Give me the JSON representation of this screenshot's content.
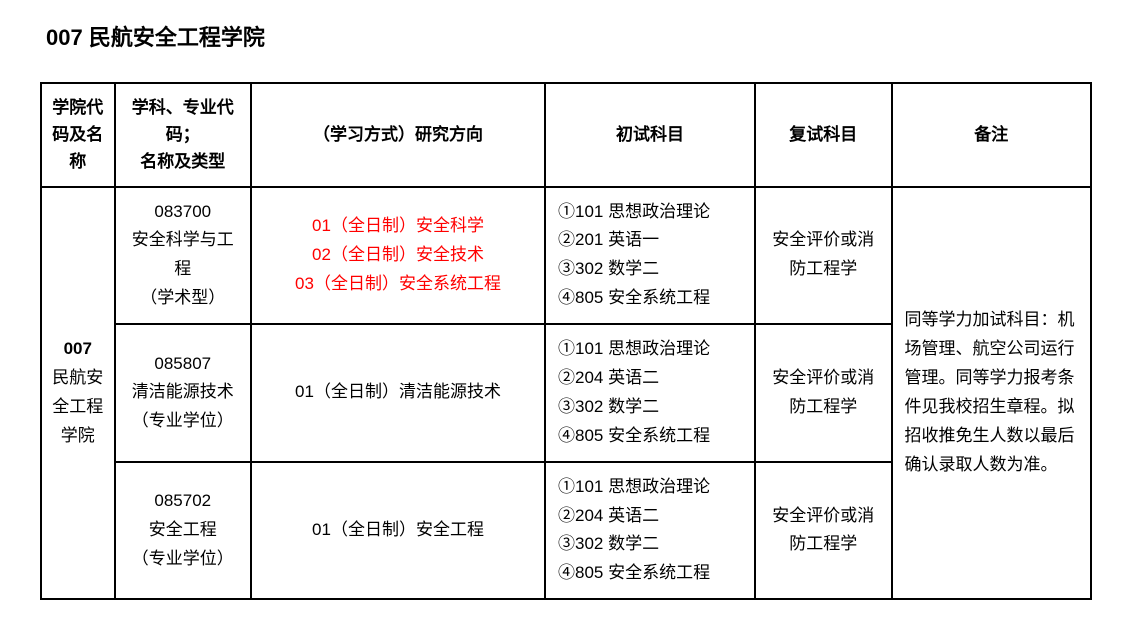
{
  "title": "007 民航安全工程学院",
  "table": {
    "columns": [
      "学院代码及名称",
      "学科、专业代码；\n名称及类型",
      "（学习方式）研究方向",
      "初试科目",
      "复试科目",
      "备注"
    ],
    "college": {
      "code": "007",
      "name": "民航安全工程学院"
    },
    "rows": [
      {
        "major_code": "083700",
        "major_name": "安全科学与工程",
        "major_type": "（学术型）",
        "directions": [
          "01（全日制）安全科学",
          "02（全日制）安全技术",
          "03（全日制）安全系统工程"
        ],
        "direction_color": "#ff0000",
        "prelim_exams": [
          "①101 思想政治理论",
          "②201 英语一",
          "③302  数学二",
          "④805 安全系统工程"
        ],
        "reexam": "安全评价或消防工程学"
      },
      {
        "major_code": "085807",
        "major_name": "清洁能源技术",
        "major_type": "（专业学位）",
        "directions": [
          "01（全日制）清洁能源技术"
        ],
        "direction_color": "#000000",
        "prelim_exams": [
          "①101 思想政治理论",
          "②204 英语二",
          "③302 数学二",
          "④805 安全系统工程"
        ],
        "reexam": "安全评价或消防工程学"
      },
      {
        "major_code": "085702",
        "major_name": "安全工程",
        "major_type": "（专业学位）",
        "directions": [
          "01（全日制）安全工程"
        ],
        "direction_color": "#000000",
        "prelim_exams": [
          "①101 思想政治理论",
          "②204 英语二",
          "③302 数学二",
          "④805 安全系统工程"
        ],
        "reexam": "安全评价或消防工程学"
      }
    ],
    "remark": "同等学力加试科目：机场管理、航空公司运行管理。同等学力报考条件见我校招生章程。拟招收推免生人数以最后确认录取人数为准。"
  },
  "styles": {
    "title_fontsize": 22,
    "cell_fontsize": 17,
    "border_color": "#000000",
    "background_color": "#ffffff",
    "text_color": "#000000",
    "highlight_color": "#ff0000",
    "column_widths_percent": [
      7,
      13,
      28,
      20,
      13,
      19
    ]
  }
}
